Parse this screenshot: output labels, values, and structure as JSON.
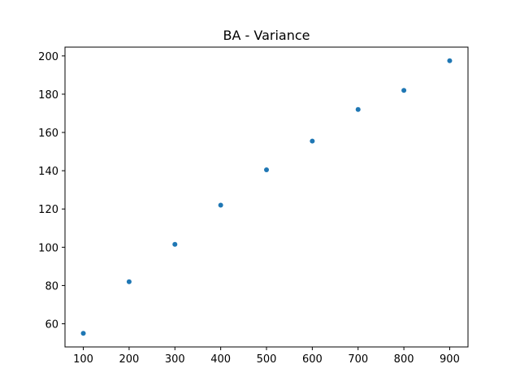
{
  "chart_data": {
    "type": "scatter",
    "title": "BA - Variance",
    "xlabel": "",
    "ylabel": "",
    "x": [
      100,
      200,
      300,
      400,
      500,
      600,
      700,
      800,
      900
    ],
    "y": [
      55,
      82,
      101.5,
      122,
      140.5,
      155.5,
      172,
      182,
      197.5
    ],
    "xlim": [
      60,
      940
    ],
    "ylim": [
      47.9,
      204.6
    ],
    "x_ticks": [
      100,
      200,
      300,
      400,
      500,
      600,
      700,
      800,
      900
    ],
    "y_ticks": [
      60,
      80,
      100,
      120,
      140,
      160,
      180,
      200
    ],
    "grid": false,
    "legend": "none",
    "marker_color": "#1f77b4"
  }
}
